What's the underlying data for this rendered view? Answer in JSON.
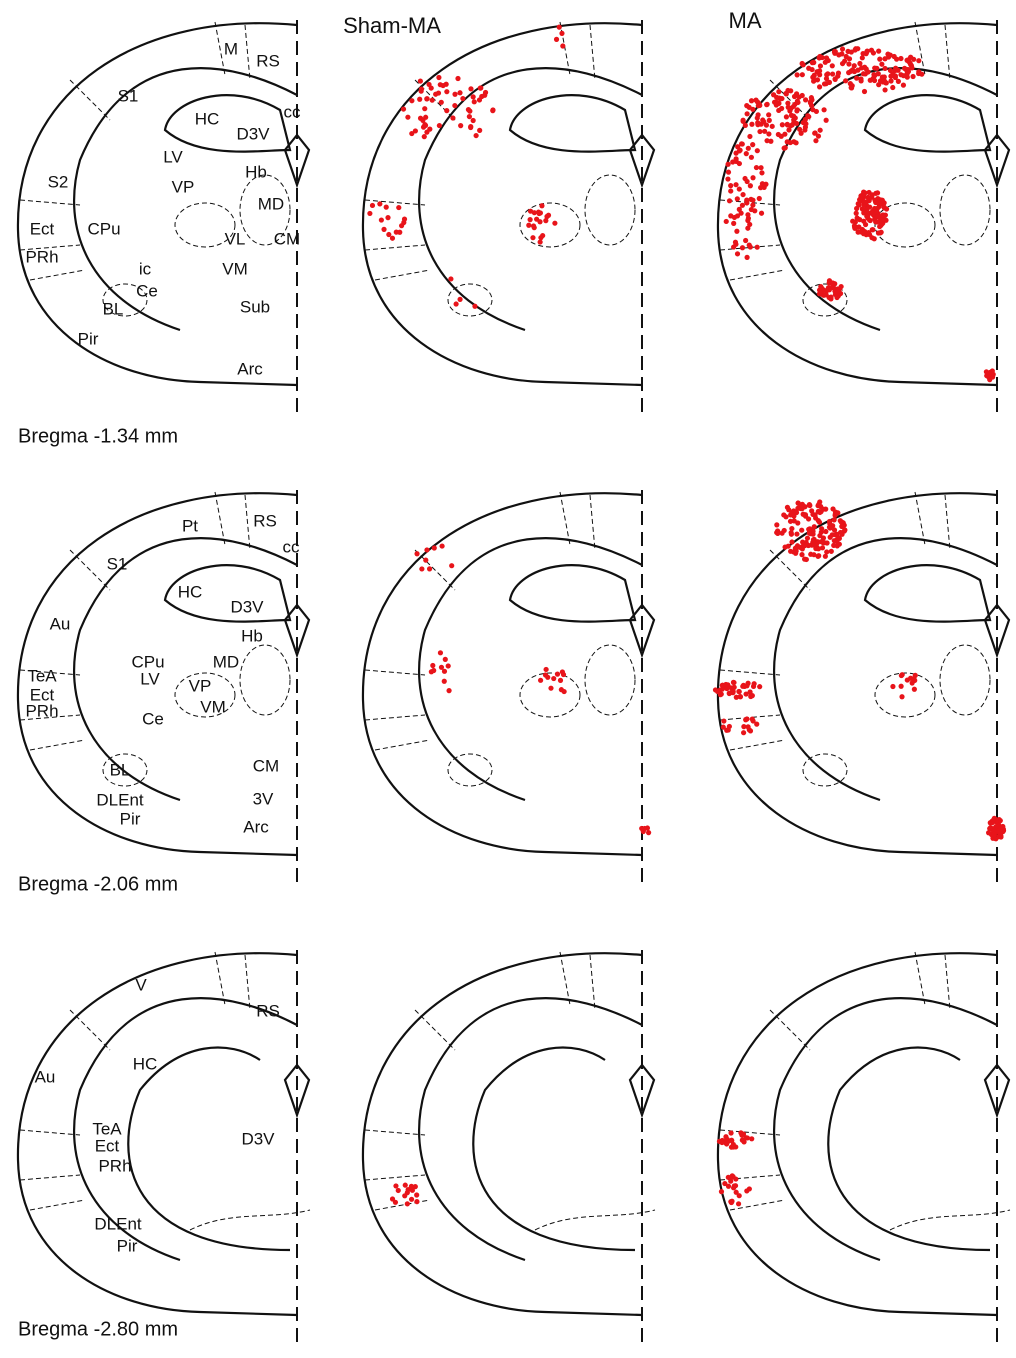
{
  "headers": [
    "Sham-MA",
    "MA"
  ],
  "rows": [
    {
      "bregma": "Bregma -1.34 mm",
      "labels": [
        "M",
        "RS",
        "S1",
        "HC",
        "cc",
        "D3V",
        "LV",
        "S2",
        "Hb",
        "VP",
        "MD",
        "Ect",
        "CPu",
        "VL",
        "CM",
        "PRh",
        "ic",
        "VM",
        "Ce",
        "BL",
        "Sub",
        "Pir",
        "Arc"
      ]
    },
    {
      "bregma": "Bregma -2.06 mm",
      "labels": [
        "Pt",
        "RS",
        "cc",
        "S1",
        "HC",
        "D3V",
        "Au",
        "Hb",
        "CPu",
        "MD",
        "TeA",
        "LV",
        "VP",
        "Ect",
        "VM",
        "PRh",
        "Ce",
        "BL",
        "CM",
        "DLEnt",
        "3V",
        "Pir",
        "Arc"
      ]
    },
    {
      "bregma": "Bregma -2.80 mm",
      "labels": [
        "V",
        "RS",
        "HC",
        "Au",
        "TeA",
        "Ect",
        "D3V",
        "PRh",
        "DLEnt",
        "Pir"
      ]
    }
  ]
}
